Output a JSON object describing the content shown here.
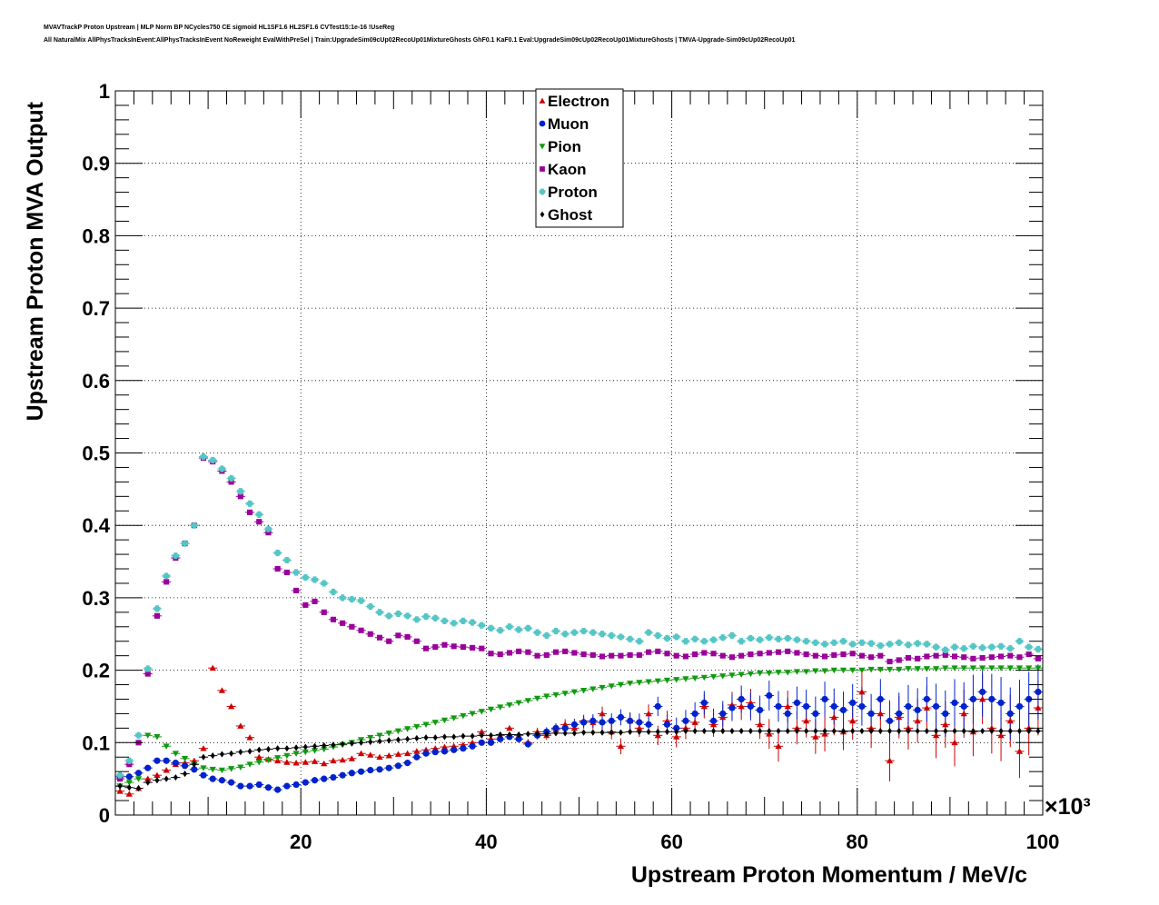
{
  "title_lines": [
    "MVAVTrackP Proton Upstream | MLP Norm BP NCycles750 CE sigmoid HL1SF1.6 HL2SF1.6 CVTest15:1e-16 !UseReg",
    "All NaturalMix AllPhysTracksInEvent:AllPhysTracksInEvent NoReweight EvalWithPreSel | Train:UpgradeSim09cUp02RecoUp01MixtureGhosts GhF0.1 KaF0.1 Eval:UpgradeSim09cUp02RecoUp01MixtureGhosts | TMVA-Upgrade-Sim09cUp02RecoUp01"
  ],
  "chart_data": {
    "type": "scatter",
    "xlabel": "Upstream Proton Momentum / MeV/c",
    "ylabel": "Upstream Proton MVA Output",
    "x_multiplier_label": "×10³",
    "xlim": [
      0,
      100
    ],
    "ylim": [
      0,
      1
    ],
    "x_ticks": [
      20,
      40,
      60,
      80,
      100
    ],
    "y_ticks": [
      0,
      0.1,
      0.2,
      0.3,
      0.4,
      0.5,
      0.6,
      0.7,
      0.8,
      0.9,
      1
    ],
    "x_tick_labels": [
      "20",
      "40",
      "60",
      "80",
      "100"
    ],
    "y_tick_labels": [
      "0",
      "0.1",
      "0.2",
      "0.3",
      "0.4",
      "0.5",
      "0.6",
      "0.7",
      "0.8",
      "0.9",
      "1"
    ],
    "grid": true,
    "legend_position": "top-center",
    "x": [
      1,
      2,
      3,
      4,
      5,
      6,
      7,
      8,
      9,
      10,
      11,
      12,
      13,
      14,
      15,
      16,
      17,
      18,
      19,
      20,
      21,
      22,
      23,
      24,
      25,
      26,
      27,
      28,
      29,
      30,
      31,
      32,
      33,
      34,
      35,
      36,
      37,
      38,
      39,
      40,
      41,
      42,
      43,
      44,
      45,
      46,
      47,
      48,
      49,
      50,
      51,
      52,
      53,
      54,
      55,
      56,
      57,
      58,
      59,
      60,
      61,
      62,
      63,
      64,
      65,
      66,
      67,
      68,
      69,
      70,
      71,
      72,
      73,
      74,
      75,
      76,
      77,
      78,
      79,
      80,
      81,
      82,
      83,
      84,
      85,
      86,
      87,
      88,
      89,
      90,
      91,
      92,
      93,
      94,
      95,
      96,
      97,
      98,
      99,
      100
    ],
    "series": [
      {
        "name": "Electron",
        "color": "#cc0000",
        "marker": "triangle-up",
        "values": [
          0.033,
          0.029,
          0.037,
          0.05,
          0.055,
          0.062,
          0.07,
          0.072,
          0.075,
          0.092,
          0.203,
          0.172,
          0.15,
          0.123,
          0.107,
          0.08,
          0.077,
          0.075,
          0.073,
          0.072,
          0.073,
          0.074,
          0.071,
          0.075,
          0.076,
          0.078,
          0.085,
          0.083,
          0.08,
          0.082,
          0.084,
          0.085,
          0.088,
          0.09,
          0.092,
          0.094,
          0.095,
          0.097,
          0.1,
          0.115,
          0.105,
          0.11,
          0.12,
          0.11,
          0.1,
          0.115,
          0.11,
          0.118,
          0.125,
          0.12,
          0.13,
          0.128,
          0.14,
          0.115,
          0.095,
          0.13,
          0.12,
          0.14,
          0.11,
          0.13,
          0.108,
          0.12,
          0.128,
          0.15,
          0.125,
          0.135,
          0.152,
          0.15,
          0.155,
          0.125,
          0.112,
          0.095,
          0.15,
          0.12,
          0.13,
          0.108,
          0.112,
          0.135,
          0.115,
          0.13,
          0.17,
          0.12,
          0.14,
          0.075,
          0.135,
          0.12,
          0.13,
          0.148,
          0.11,
          0.125,
          0.1,
          0.14,
          0.115,
          0.16,
          0.12,
          0.11,
          0.13,
          0.088,
          0.12,
          0.148
        ]
      },
      {
        "name": "Muon",
        "color": "#0022cc",
        "marker": "circle",
        "values": [
          0.053,
          0.053,
          0.058,
          0.065,
          0.075,
          0.075,
          0.072,
          0.068,
          0.063,
          0.055,
          0.05,
          0.048,
          0.045,
          0.04,
          0.04,
          0.042,
          0.038,
          0.035,
          0.04,
          0.042,
          0.045,
          0.048,
          0.05,
          0.052,
          0.055,
          0.058,
          0.06,
          0.062,
          0.063,
          0.065,
          0.068,
          0.072,
          0.08,
          0.085,
          0.087,
          0.088,
          0.09,
          0.092,
          0.095,
          0.1,
          0.1,
          0.105,
          0.108,
          0.105,
          0.098,
          0.11,
          0.115,
          0.12,
          0.12,
          0.125,
          0.128,
          0.13,
          0.128,
          0.13,
          0.135,
          0.13,
          0.128,
          0.125,
          0.15,
          0.125,
          0.12,
          0.13,
          0.14,
          0.155,
          0.13,
          0.14,
          0.148,
          0.16,
          0.15,
          0.145,
          0.165,
          0.15,
          0.14,
          0.155,
          0.15,
          0.14,
          0.16,
          0.15,
          0.145,
          0.155,
          0.15,
          0.14,
          0.16,
          0.13,
          0.14,
          0.15,
          0.145,
          0.16,
          0.15,
          0.14,
          0.155,
          0.15,
          0.16,
          0.17,
          0.16,
          0.155,
          0.14,
          0.15,
          0.16,
          0.17
        ]
      },
      {
        "name": "Pion",
        "color": "#119911",
        "marker": "triangle-down",
        "values": [
          0.04,
          0.045,
          0.05,
          0.11,
          0.108,
          0.095,
          0.085,
          0.078,
          0.07,
          0.065,
          0.063,
          0.062,
          0.064,
          0.066,
          0.07,
          0.073,
          0.076,
          0.079,
          0.082,
          0.085,
          0.087,
          0.089,
          0.091,
          0.094,
          0.097,
          0.1,
          0.104,
          0.107,
          0.11,
          0.113,
          0.116,
          0.119,
          0.122,
          0.125,
          0.128,
          0.131,
          0.134,
          0.137,
          0.14,
          0.143,
          0.146,
          0.149,
          0.152,
          0.155,
          0.158,
          0.161,
          0.164,
          0.166,
          0.168,
          0.17,
          0.172,
          0.174,
          0.176,
          0.178,
          0.18,
          0.182,
          0.183,
          0.184,
          0.185,
          0.186,
          0.187,
          0.188,
          0.189,
          0.19,
          0.191,
          0.192,
          0.193,
          0.194,
          0.195,
          0.196,
          0.196,
          0.197,
          0.197,
          0.198,
          0.198,
          0.199,
          0.199,
          0.2,
          0.2,
          0.2,
          0.2,
          0.201,
          0.201,
          0.201,
          0.201,
          0.202,
          0.202,
          0.202,
          0.202,
          0.203,
          0.203,
          0.203,
          0.203,
          0.203,
          0.203,
          0.203,
          0.203,
          0.203,
          0.203,
          0.203
        ]
      },
      {
        "name": "Kaon",
        "color": "#990099",
        "marker": "square",
        "values": [
          0.05,
          0.07,
          0.1,
          0.195,
          0.275,
          0.322,
          0.355,
          0.375,
          0.4,
          0.493,
          0.488,
          0.475,
          0.46,
          0.44,
          0.418,
          0.405,
          0.39,
          0.34,
          0.335,
          0.31,
          0.29,
          0.295,
          0.28,
          0.27,
          0.265,
          0.26,
          0.255,
          0.25,
          0.245,
          0.24,
          0.248,
          0.246,
          0.24,
          0.23,
          0.232,
          0.235,
          0.233,
          0.232,
          0.231,
          0.23,
          0.223,
          0.222,
          0.224,
          0.226,
          0.225,
          0.22,
          0.221,
          0.225,
          0.226,
          0.224,
          0.222,
          0.221,
          0.219,
          0.22,
          0.22,
          0.221,
          0.221,
          0.225,
          0.226,
          0.223,
          0.22,
          0.219,
          0.222,
          0.224,
          0.223,
          0.22,
          0.218,
          0.22,
          0.222,
          0.223,
          0.224,
          0.225,
          0.226,
          0.224,
          0.222,
          0.22,
          0.219,
          0.221,
          0.222,
          0.223,
          0.22,
          0.218,
          0.22,
          0.212,
          0.214,
          0.217,
          0.216,
          0.219,
          0.22,
          0.221,
          0.219,
          0.218,
          0.216,
          0.217,
          0.218,
          0.219,
          0.22,
          0.218,
          0.222,
          0.216
        ]
      },
      {
        "name": "Proton",
        "color": "#55c5c5",
        "marker": "cross",
        "values": [
          0.055,
          0.075,
          0.11,
          0.202,
          0.285,
          0.33,
          0.358,
          0.375,
          0.4,
          0.495,
          0.49,
          0.478,
          0.465,
          0.447,
          0.43,
          0.415,
          0.395,
          0.362,
          0.352,
          0.335,
          0.328,
          0.325,
          0.32,
          0.308,
          0.3,
          0.298,
          0.296,
          0.288,
          0.28,
          0.275,
          0.278,
          0.275,
          0.27,
          0.274,
          0.272,
          0.268,
          0.265,
          0.268,
          0.266,
          0.262,
          0.258,
          0.255,
          0.26,
          0.256,
          0.258,
          0.252,
          0.248,
          0.254,
          0.25,
          0.252,
          0.254,
          0.252,
          0.25,
          0.248,
          0.246,
          0.243,
          0.24,
          0.252,
          0.248,
          0.244,
          0.246,
          0.24,
          0.243,
          0.24,
          0.242,
          0.245,
          0.248,
          0.24,
          0.244,
          0.242,
          0.245,
          0.243,
          0.244,
          0.242,
          0.24,
          0.238,
          0.236,
          0.238,
          0.24,
          0.236,
          0.238,
          0.237,
          0.234,
          0.236,
          0.238,
          0.235,
          0.237,
          0.236,
          0.232,
          0.228,
          0.232,
          0.23,
          0.233,
          0.231,
          0.232,
          0.233,
          0.23,
          0.24,
          0.232,
          0.229
        ]
      },
      {
        "name": "Ghost",
        "color": "#000000",
        "marker": "diamond",
        "values": [
          0.04,
          0.038,
          0.037,
          0.045,
          0.048,
          0.05,
          0.052,
          0.057,
          0.07,
          0.08,
          0.082,
          0.084,
          0.085,
          0.087,
          0.088,
          0.09,
          0.091,
          0.092,
          0.092,
          0.093,
          0.094,
          0.095,
          0.096,
          0.097,
          0.098,
          0.099,
          0.1,
          0.101,
          0.102,
          0.103,
          0.104,
          0.105,
          0.106,
          0.107,
          0.107,
          0.108,
          0.108,
          0.109,
          0.109,
          0.11,
          0.11,
          0.111,
          0.111,
          0.111,
          0.112,
          0.112,
          0.112,
          0.113,
          0.113,
          0.113,
          0.114,
          0.114,
          0.114,
          0.114,
          0.114,
          0.115,
          0.115,
          0.115,
          0.115,
          0.115,
          0.115,
          0.116,
          0.116,
          0.116,
          0.116,
          0.116,
          0.116,
          0.116,
          0.116,
          0.116,
          0.116,
          0.116,
          0.116,
          0.116,
          0.116,
          0.116,
          0.116,
          0.116,
          0.116,
          0.116,
          0.116,
          0.116,
          0.116,
          0.116,
          0.116,
          0.116,
          0.116,
          0.116,
          0.116,
          0.116,
          0.116,
          0.116,
          0.116,
          0.116,
          0.116,
          0.116,
          0.116,
          0.116,
          0.116,
          0.116
        ]
      }
    ]
  }
}
